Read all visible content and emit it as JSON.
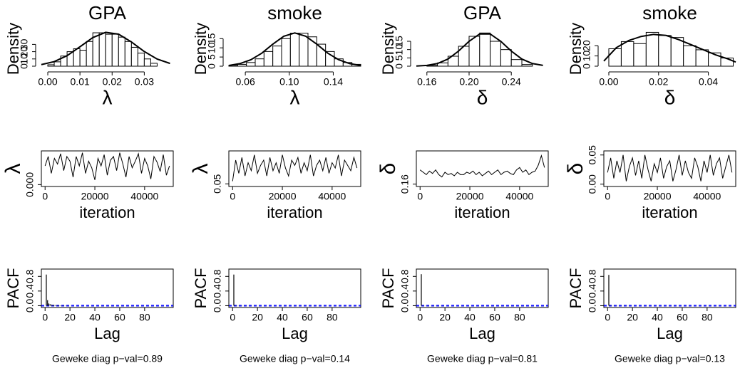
{
  "chart_data": [
    {
      "type": "histogram",
      "title": "GPA",
      "xlabel": "λ",
      "ylabel": "Density",
      "bins": [
        0,
        0.002,
        0.004,
        0.006,
        0.008,
        0.01,
        0.012,
        0.014,
        0.016,
        0.018,
        0.02,
        0.022,
        0.024,
        0.026,
        0.028,
        0.03,
        0.032,
        0.034
      ],
      "counts": [
        2,
        6,
        14,
        20,
        24,
        22,
        34,
        46,
        46,
        44,
        44,
        40,
        34,
        26,
        18,
        10,
        4
      ],
      "density": {
        "x": [
          -0.002,
          0.002,
          0.006,
          0.01,
          0.014,
          0.018,
          0.022,
          0.026,
          0.03,
          0.034,
          0.038
        ],
        "values": [
          2.2,
          6.3,
          14.5,
          26.7,
          39.4,
          46.6,
          44.1,
          33.4,
          20.2,
          9.8,
          3.8
        ]
      },
      "color": "#000000",
      "xlim": [
        -0.002,
        0.039
      ],
      "ylim": [
        0,
        48
      ],
      "xticks": [
        {
          "value": 0,
          "label": "0.00"
        },
        0.01,
        0.02,
        0.03
      ],
      "yticks": [
        0,
        10,
        20,
        30
      ]
    },
    {
      "type": "histogram",
      "title": "smoke",
      "xlabel": "λ",
      "ylabel": "Density",
      "bins": [
        0.045,
        0.053,
        0.061,
        0.069,
        0.077,
        0.085,
        0.093,
        0.101,
        0.109,
        0.117,
        0.125,
        0.133,
        0.141,
        0.149,
        0.157,
        0.165
      ],
      "counts": [
        0.5,
        1,
        2,
        4,
        8,
        11,
        15,
        18,
        18,
        16,
        12,
        8,
        4,
        2,
        1
      ],
      "density": {
        "x": [
          0.045,
          0.055,
          0.065,
          0.075,
          0.085,
          0.095,
          0.105,
          0.115,
          0.125,
          0.135,
          0.145,
          0.155,
          0.165
        ],
        "values": [
          0.4,
          1.4,
          3.5,
          7.1,
          12.0,
          16.3,
          18.1,
          16.3,
          12.0,
          7.1,
          3.5,
          1.4,
          0.4
        ]
      },
      "color": "#000000",
      "xlim": [
        0.045,
        0.165
      ],
      "ylim": [
        0,
        19
      ],
      "xticks": [
        0.06,
        {
          "value": 0.1,
          "label": "0.10"
        },
        0.14
      ],
      "yticks": [
        0,
        5,
        10,
        15
      ]
    },
    {
      "type": "histogram",
      "title": "GPA",
      "xlabel": "δ",
      "ylabel": "Density",
      "bins": [
        0.16,
        0.17,
        0.18,
        0.19,
        0.2,
        0.21,
        0.22,
        0.23,
        0.24,
        0.25,
        0.26
      ],
      "counts": [
        0.5,
        2,
        6,
        12,
        18,
        20,
        15,
        10,
        4,
        1
      ],
      "density": {
        "x": [
          0.15,
          0.16,
          0.17,
          0.18,
          0.19,
          0.2,
          0.21,
          0.22,
          0.23,
          0.24,
          0.25,
          0.26,
          0.27
        ],
        "values": [
          0.1,
          0.5,
          1.6,
          4.3,
          9.1,
          15.0,
          19.4,
          19.4,
          15.0,
          9.1,
          4.3,
          1.6,
          0.5
        ]
      },
      "color": "#000000",
      "xlim": [
        0.15,
        0.275
      ],
      "ylim": [
        0,
        21
      ],
      "xticks": [
        0.16,
        {
          "value": 0.2,
          "label": "0.20"
        },
        0.24
      ],
      "yticks": [
        0,
        5,
        10,
        15
      ]
    },
    {
      "type": "histogram",
      "title": "smoke",
      "xlabel": "δ",
      "ylabel": "Density",
      "bins": [
        0,
        0.005,
        0.01,
        0.015,
        0.02,
        0.025,
        0.03,
        0.035,
        0.04,
        0.045,
        0.05
      ],
      "counts": [
        17,
        24,
        22,
        33,
        30,
        28,
        20,
        16,
        13,
        8
      ],
      "density": {
        "x": [
          -0.002,
          0.003,
          0.008,
          0.013,
          0.018,
          0.023,
          0.028,
          0.033,
          0.038,
          0.043,
          0.048,
          0.051
        ],
        "values": [
          5,
          18,
          25,
          29,
          31,
          30,
          26,
          21,
          16,
          11,
          7,
          4
        ]
      },
      "color": "#000000",
      "xlim": [
        -0.002,
        0.051
      ],
      "ylim": [
        0,
        34
      ],
      "xticks": [
        {
          "value": 0,
          "label": "0.00"
        },
        0.02,
        0.04
      ],
      "yticks": [
        0,
        10,
        20
      ]
    },
    {
      "type": "line",
      "xlabel": "iteration",
      "ylabel": "λ",
      "x": [
        0,
        1250,
        2500,
        3750,
        5000,
        6250,
        7500,
        8750,
        10000,
        11250,
        12500,
        13750,
        15000,
        16250,
        17500,
        18750,
        20000,
        21250,
        22500,
        23750,
        25000,
        26250,
        27500,
        28750,
        30000,
        31250,
        32500,
        33750,
        35000,
        36250,
        37500,
        38750,
        40000,
        41250,
        42500,
        43750,
        45000,
        46250,
        47500,
        48750,
        50000
      ],
      "values": [
        0.02,
        0.03,
        0.012,
        0.028,
        0.022,
        0.033,
        0.015,
        0.03,
        0.025,
        0.008,
        0.03,
        0.02,
        0.034,
        0.012,
        0.025,
        0.018,
        0.005,
        0.028,
        0.02,
        0.032,
        0.01,
        0.026,
        0.03,
        0.015,
        0.034,
        0.022,
        0.008,
        0.03,
        0.018,
        0.025,
        0.033,
        0.012,
        0.028,
        0.02,
        0.006,
        0.03,
        0.024,
        0.014,
        0.032,
        0.01,
        0.02
      ],
      "color": "#000000",
      "xlim": [
        -1500,
        51500
      ],
      "ylim": [
        -0.002,
        0.036
      ],
      "xticks": [
        0,
        20000,
        40000
      ],
      "yticks": [
        {
          "value": 0,
          "label": "0.000"
        }
      ]
    },
    {
      "type": "line",
      "xlabel": "iteration",
      "ylabel": "λ",
      "x": [
        0,
        1250,
        2500,
        3750,
        5000,
        6250,
        7500,
        8750,
        10000,
        11250,
        12500,
        13750,
        15000,
        16250,
        17500,
        18750,
        20000,
        21250,
        22500,
        23750,
        25000,
        26250,
        27500,
        28750,
        30000,
        31250,
        32500,
        33750,
        35000,
        36250,
        37500,
        38750,
        40000,
        41250,
        42500,
        43750,
        45000,
        46250,
        47500,
        48750,
        50000
      ],
      "values": [
        0.06,
        0.14,
        0.09,
        0.15,
        0.08,
        0.13,
        0.1,
        0.16,
        0.09,
        0.12,
        0.14,
        0.08,
        0.15,
        0.1,
        0.13,
        0.09,
        0.16,
        0.11,
        0.08,
        0.14,
        0.12,
        0.15,
        0.09,
        0.13,
        0.1,
        0.16,
        0.08,
        0.12,
        0.14,
        0.1,
        0.15,
        0.09,
        0.13,
        0.11,
        0.16,
        0.08,
        0.14,
        0.12,
        0.1,
        0.15,
        0.11
      ],
      "color": "#000000",
      "xlim": [
        -1500,
        51500
      ],
      "ylim": [
        0.04,
        0.175
      ],
      "xticks": [
        0,
        20000,
        40000
      ],
      "yticks": [
        0.05
      ]
    },
    {
      "type": "line",
      "xlabel": "iteration",
      "ylabel": "δ",
      "x": [
        0,
        1250,
        2500,
        3750,
        5000,
        6250,
        7500,
        8750,
        10000,
        11250,
        12500,
        13750,
        15000,
        16250,
        17500,
        18750,
        20000,
        21250,
        22500,
        23750,
        25000,
        26250,
        27500,
        28750,
        30000,
        31250,
        32500,
        33750,
        35000,
        36250,
        37500,
        38750,
        40000,
        41250,
        42500,
        43750,
        45000,
        46250,
        47500,
        48750,
        50000
      ],
      "values": [
        0.22,
        0.21,
        0.2,
        0.215,
        0.205,
        0.22,
        0.2,
        0.19,
        0.21,
        0.2,
        0.205,
        0.195,
        0.21,
        0.2,
        0.2,
        0.21,
        0.205,
        0.215,
        0.2,
        0.21,
        0.195,
        0.205,
        0.215,
        0.2,
        0.21,
        0.22,
        0.2,
        0.21,
        0.215,
        0.205,
        0.2,
        0.22,
        0.23,
        0.21,
        0.22,
        0.2,
        0.21,
        0.215,
        0.24,
        0.28,
        0.23
      ],
      "color": "#000000",
      "xlim": [
        -1500,
        51500
      ],
      "ylim": [
        0.15,
        0.3
      ],
      "xticks": [
        0,
        20000,
        40000
      ],
      "yticks": [
        0.16
      ]
    },
    {
      "type": "line",
      "xlabel": "iteration",
      "ylabel": "δ",
      "x": [
        0,
        1250,
        2500,
        3750,
        5000,
        6250,
        7500,
        8750,
        10000,
        11250,
        12500,
        13750,
        15000,
        16250,
        17500,
        18750,
        20000,
        21250,
        22500,
        23750,
        25000,
        26250,
        27500,
        28750,
        30000,
        31250,
        32500,
        33750,
        35000,
        36250,
        37500,
        38750,
        40000,
        41250,
        42500,
        43750,
        45000,
        46250,
        47500,
        48750,
        50000
      ],
      "values": [
        0.02,
        0.045,
        0.01,
        0.04,
        0.02,
        0.05,
        0.005,
        0.03,
        0.045,
        0.015,
        0.04,
        0.01,
        0.05,
        0.025,
        0.005,
        0.035,
        0.02,
        0.045,
        0.01,
        0.03,
        0.04,
        0.005,
        0.025,
        0.05,
        0.015,
        0.04,
        0.02,
        0.01,
        0.045,
        0.03,
        0.005,
        0.04,
        0.02,
        0.05,
        0.015,
        0.035,
        0.045,
        0.01,
        0.03,
        0.05,
        0.02
      ],
      "color": "#000000",
      "xlim": [
        -1500,
        51500
      ],
      "ylim": [
        -0.004,
        0.057
      ],
      "xticks": [
        0,
        20000,
        40000
      ],
      "yticks": [
        {
          "value": 0,
          "label": "0.00"
        },
        0.05
      ]
    },
    {
      "type": "bar",
      "xlabel": "Lag",
      "ylabel": "PACF",
      "note": "Geweke diag p−val=0.89",
      "x": [
        1,
        2,
        3,
        4,
        5,
        6,
        7,
        8,
        9,
        10,
        11,
        12,
        13,
        14,
        15,
        16,
        17,
        18,
        19,
        20
      ],
      "values": [
        0.85,
        0.15,
        0.06,
        0.04,
        0.03,
        0.02,
        0.02,
        0.015,
        0.01,
        0.01,
        0.01,
        0.008,
        0.006,
        0.005,
        0.005,
        0.004,
        0.003,
        0.003,
        0.002,
        0.002
      ],
      "ci": [
        -0.01,
        0.01
      ],
      "color": "#000000",
      "ci_color": "#0000ff",
      "xlim": [
        -3,
        103
      ],
      "ylim": [
        -0.05,
        1
      ],
      "xticks": [
        0,
        20,
        40,
        60,
        80
      ],
      "yticks": [
        {
          "value": 0,
          "label": "0.0"
        },
        0.4,
        0.8
      ]
    },
    {
      "type": "bar",
      "xlabel": "Lag",
      "ylabel": "PACF",
      "note": "Geweke diag p−val=0.14",
      "x": [
        1,
        2,
        3,
        4,
        5,
        6,
        7,
        8,
        9,
        10,
        11,
        12,
        13,
        14,
        15,
        16,
        17,
        18,
        19,
        20
      ],
      "values": [
        0.85,
        0.01,
        0.005,
        -0.003,
        0.004,
        0.002,
        -0.002,
        0.003,
        0.001,
        -0.001,
        0.002,
        0.001,
        -0.002,
        0.001,
        0.002,
        -0.001,
        0.001,
        0,
        0.001,
        -0.001
      ],
      "ci": [
        -0.01,
        0.01
      ],
      "color": "#000000",
      "ci_color": "#0000ff",
      "xlim": [
        -3,
        103
      ],
      "ylim": [
        -0.05,
        1
      ],
      "xticks": [
        0,
        20,
        40,
        60,
        80
      ],
      "yticks": [
        {
          "value": 0,
          "label": "0.0"
        },
        0.4,
        0.8
      ]
    },
    {
      "type": "bar",
      "xlabel": "Lag",
      "ylabel": "PACF",
      "note": "Geweke diag p−val=0.81",
      "x": [
        1,
        2,
        3,
        4,
        5,
        6,
        7,
        8,
        9,
        10,
        11,
        12,
        13,
        14,
        15,
        16,
        17,
        18,
        19,
        20
      ],
      "values": [
        0.86,
        0.008,
        -0.004,
        0.003,
        0.002,
        -0.002,
        0.004,
        0.001,
        -0.001,
        0.002,
        0.001,
        -0.002,
        0.002,
        0.001,
        -0.001,
        0.001,
        0.002,
        -0.001,
        0.001,
        0
      ],
      "ci": [
        -0.01,
        0.01
      ],
      "color": "#000000",
      "ci_color": "#0000ff",
      "xlim": [
        -3,
        103
      ],
      "ylim": [
        -0.05,
        1
      ],
      "xticks": [
        0,
        20,
        40,
        60,
        80
      ],
      "yticks": [
        {
          "value": 0,
          "label": "0.0"
        },
        0.4,
        0.8
      ]
    },
    {
      "type": "bar",
      "xlabel": "Lag",
      "ylabel": "PACF",
      "note": "Geweke diag p−val=0.13",
      "x": [
        1,
        2,
        3,
        4,
        5,
        6,
        7,
        8,
        9,
        10,
        11,
        12,
        13,
        14,
        15,
        16,
        17,
        18,
        19,
        20
      ],
      "values": [
        0.84,
        0.012,
        0.004,
        -0.002,
        0.003,
        0.001,
        -0.003,
        0.002,
        0.001,
        -0.001,
        0.002,
        0.001,
        -0.001,
        0.002,
        0.001,
        -0.002,
        0.001,
        0.001,
        -0.001,
        0.001
      ],
      "ci": [
        -0.01,
        0.01
      ],
      "color": "#000000",
      "ci_color": "#0000ff",
      "xlim": [
        -3,
        103
      ],
      "ylim": [
        -0.05,
        1
      ],
      "xticks": [
        0,
        20,
        40,
        60,
        80
      ],
      "yticks": [
        {
          "value": 0,
          "label": "0.0"
        },
        0.4,
        0.8
      ]
    }
  ]
}
